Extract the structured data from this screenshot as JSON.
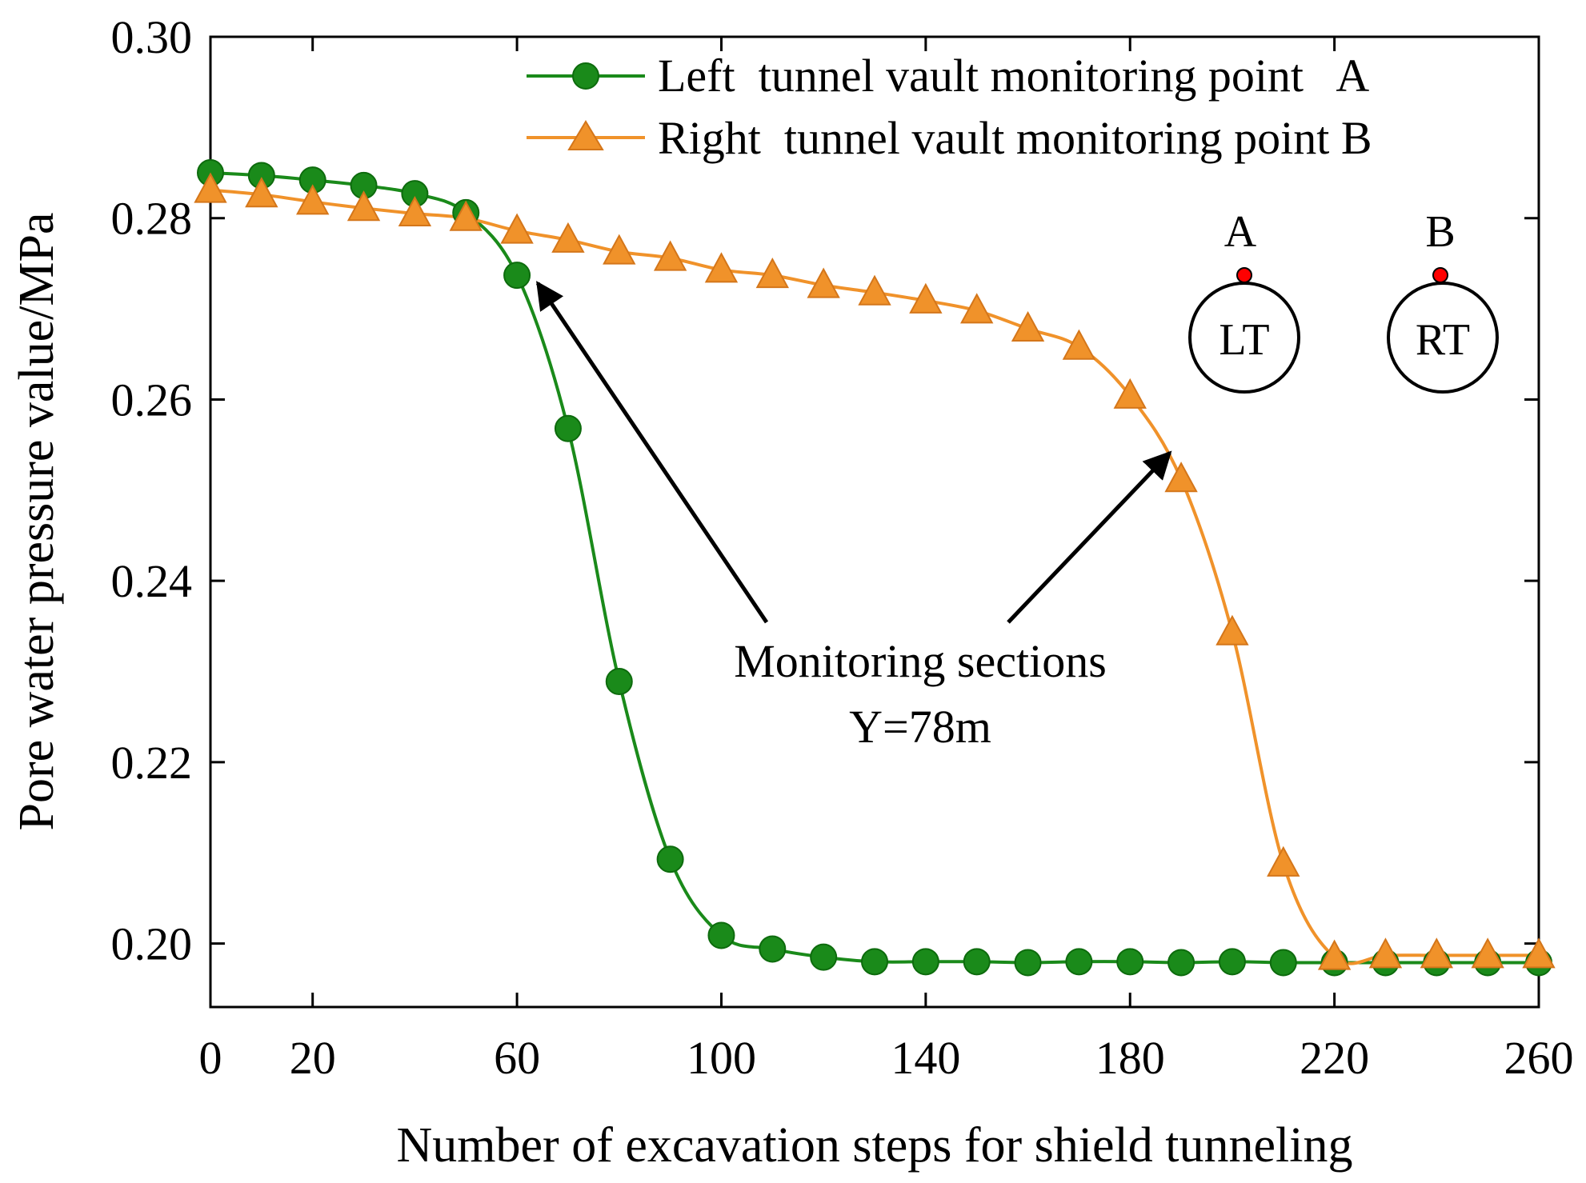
{
  "colors": {
    "series_a": "#1a8a1a",
    "series_a_stroke": "#0d6b0d",
    "series_b": "#f0922a",
    "series_b_stroke": "#d4761a",
    "monitor_dot": "#ff0000"
  },
  "chart_data": {
    "type": "line",
    "title": "",
    "xlabel": "Number of excavation steps for shield tunneling",
    "ylabel": "Pore water pressure value/MPa",
    "xlim": [
      0,
      260
    ],
    "ylim": [
      0.193,
      0.3
    ],
    "xticks": [
      0,
      20,
      60,
      100,
      140,
      180,
      220,
      260
    ],
    "xtick_labels": [
      "0",
      "20",
      "60",
      "100",
      "140",
      "180",
      "220",
      "260"
    ],
    "yticks": [
      0.2,
      0.22,
      0.24,
      0.26,
      0.28,
      0.3
    ],
    "ytick_labels": [
      "0.20",
      "0.22",
      "0.24",
      "0.26",
      "0.28",
      "0.30"
    ],
    "legend_position": "top-right",
    "series": [
      {
        "name": "Left  tunnel vault monitoring point   A",
        "marker": "circle",
        "x": [
          0,
          10,
          20,
          30,
          40,
          50,
          60,
          70,
          80,
          90,
          100,
          110,
          120,
          130,
          140,
          150,
          160,
          170,
          180,
          190,
          200,
          210,
          220,
          230,
          240,
          250,
          260
        ],
        "y": [
          0.285,
          0.2847,
          0.2842,
          0.2836,
          0.2827,
          0.2806,
          0.2737,
          0.2568,
          0.2289,
          0.2093,
          0.2009,
          0.1994,
          0.1985,
          0.198,
          0.198,
          0.198,
          0.1979,
          0.198,
          0.198,
          0.1979,
          0.198,
          0.1979,
          0.1979,
          0.1979,
          0.1979,
          0.1979,
          0.1979
        ]
      },
      {
        "name": "Right  tunnel vault monitoring point B",
        "marker": "triangle",
        "x": [
          0,
          10,
          20,
          30,
          40,
          50,
          60,
          70,
          80,
          90,
          100,
          110,
          120,
          130,
          140,
          150,
          160,
          170,
          180,
          190,
          200,
          210,
          220,
          230,
          240,
          250,
          260
        ],
        "y": [
          0.2831,
          0.2826,
          0.2818,
          0.2811,
          0.2805,
          0.28,
          0.2786,
          0.2776,
          0.2763,
          0.2756,
          0.2743,
          0.2737,
          0.2726,
          0.2718,
          0.2709,
          0.2698,
          0.2678,
          0.2658,
          0.2604,
          0.2512,
          0.2343,
          0.2088,
          0.1985,
          0.1987,
          0.1987,
          0.1987,
          0.1987
        ]
      }
    ],
    "annotations": {
      "text_line1": "Monitoring sections",
      "text_line2": "Y=78m",
      "arrow_targets": [
        {
          "series": "A",
          "x": 63,
          "y": 0.2735
        },
        {
          "series": "B",
          "x": 188,
          "y": 0.2533
        }
      ]
    },
    "inset": {
      "left_tunnel": {
        "point_label": "A",
        "tunnel_label": "LT"
      },
      "right_tunnel": {
        "point_label": "B",
        "tunnel_label": "RT"
      }
    }
  }
}
